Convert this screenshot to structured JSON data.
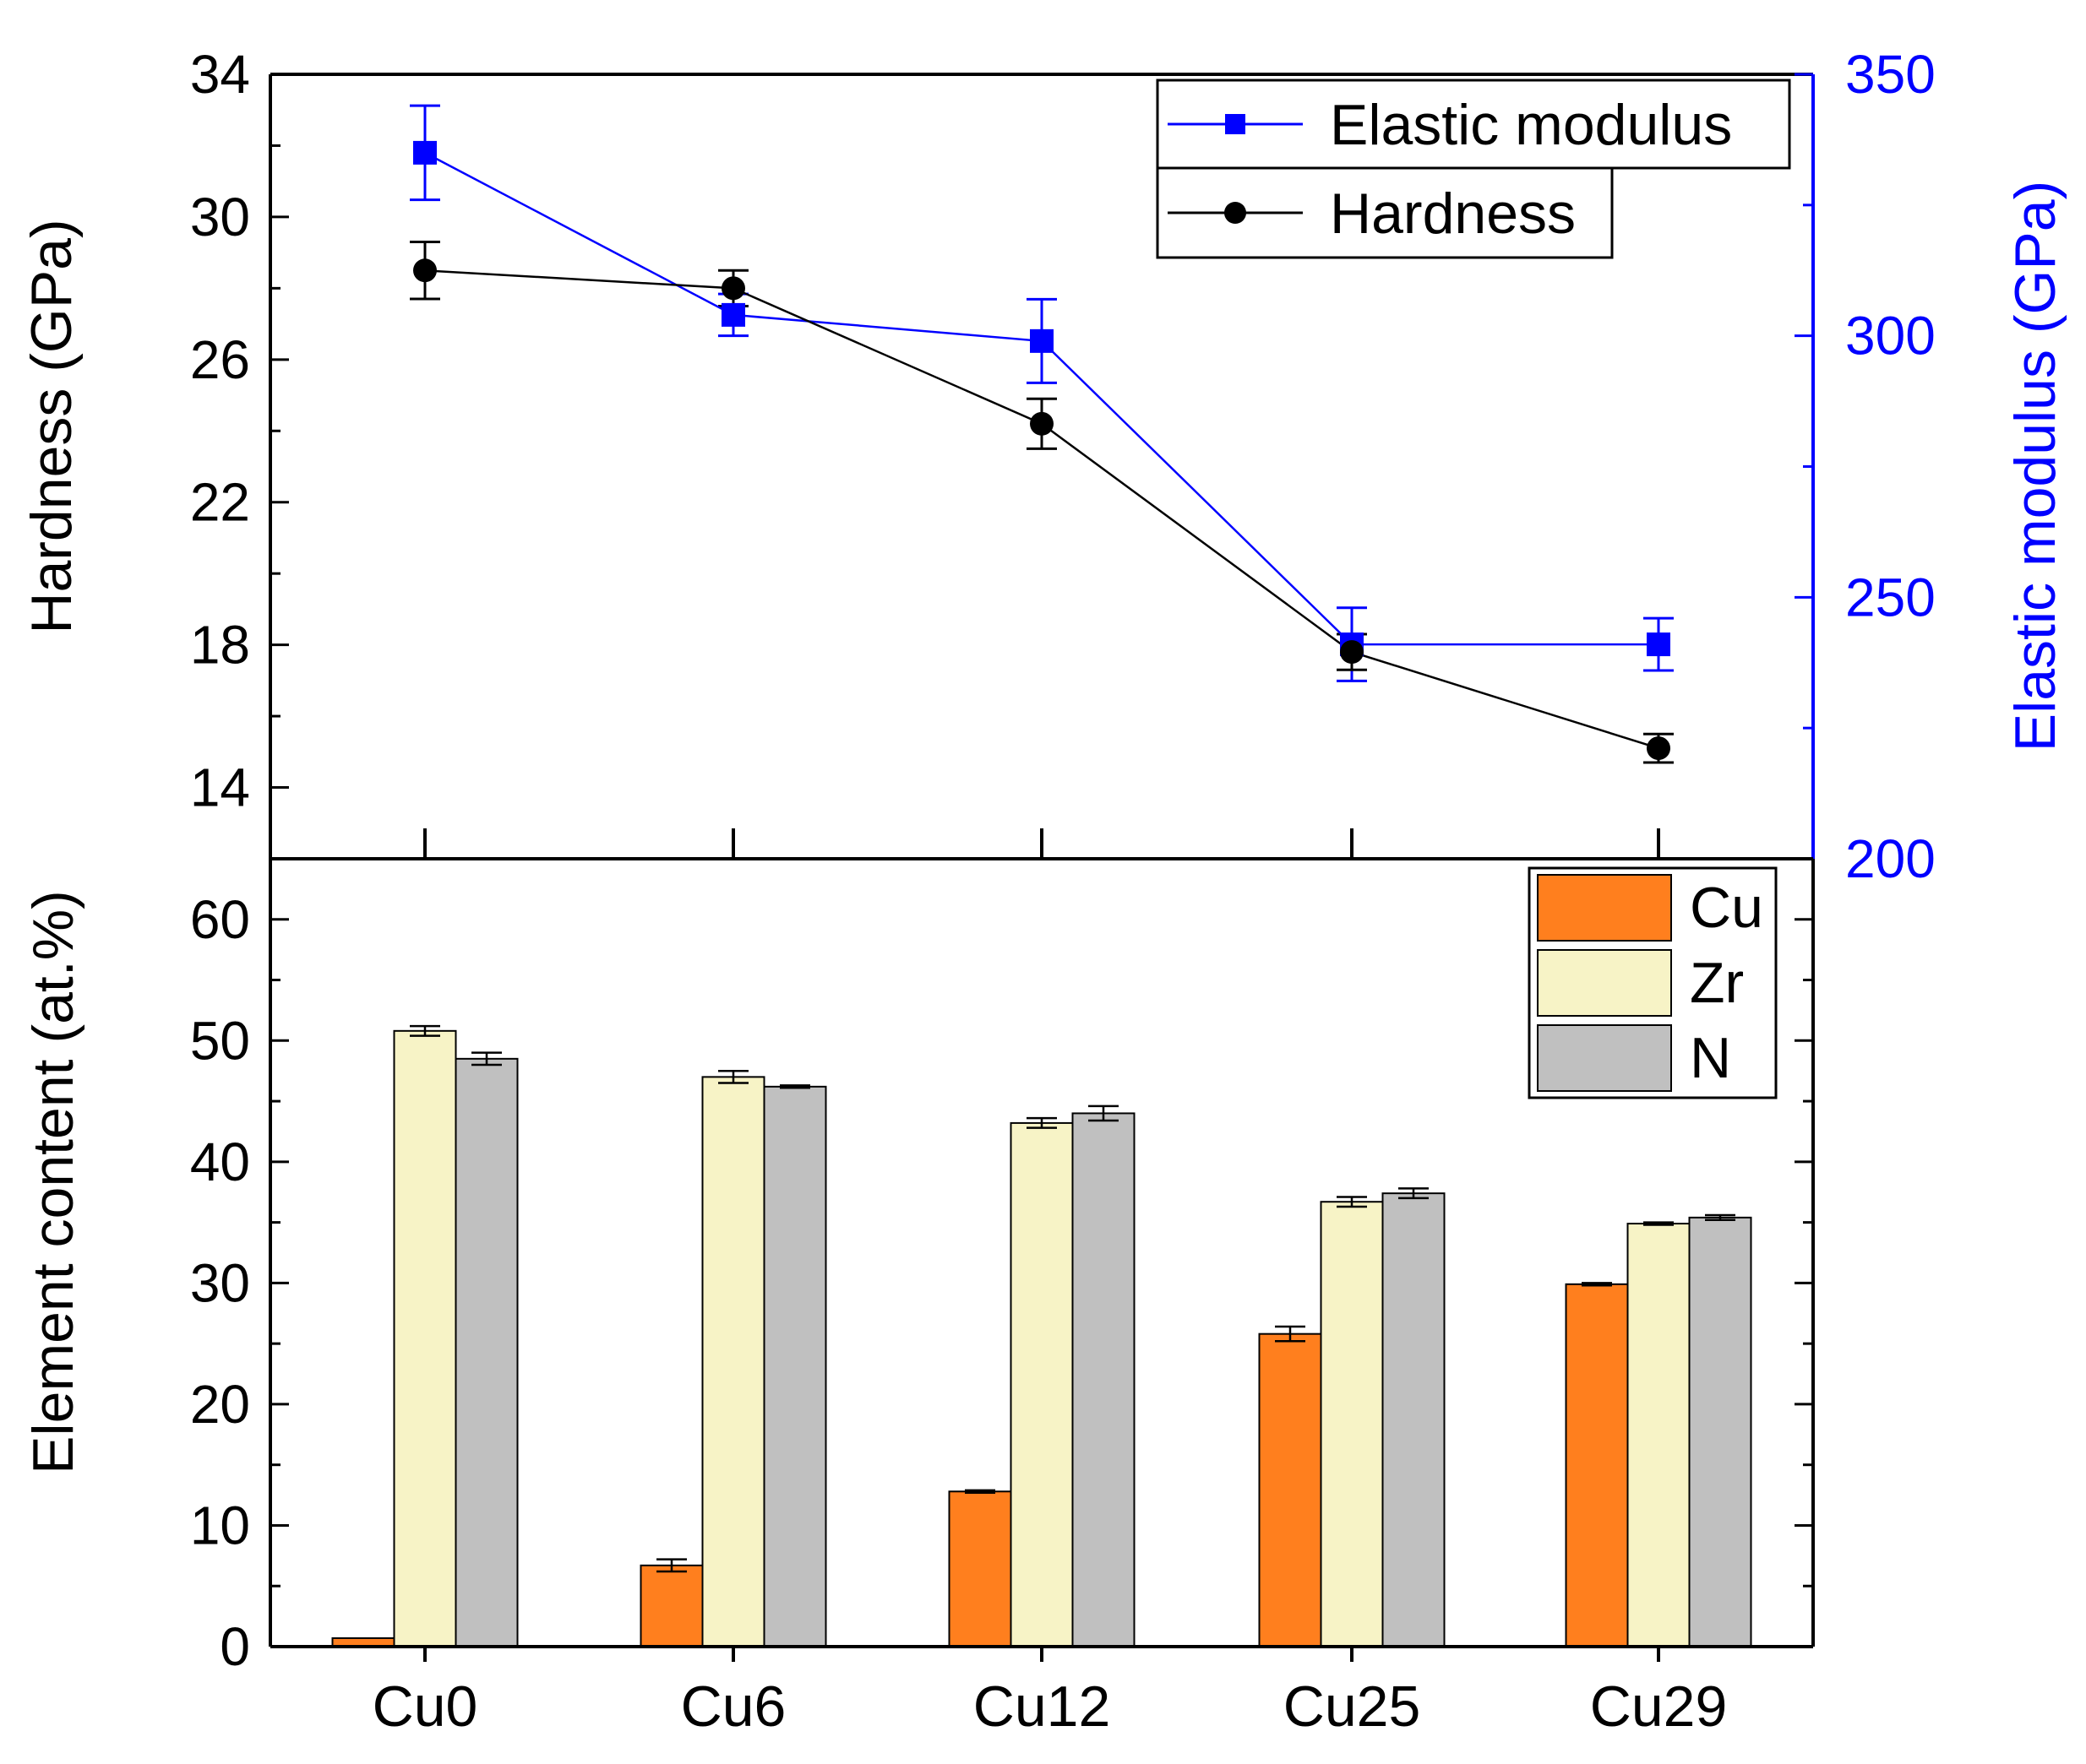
{
  "chart_data": [
    {
      "type": "line",
      "categories": [
        "Cu0",
        "Cu6",
        "Cu12",
        "Cu25",
        "Cu29"
      ],
      "ylabel": "Hardness (GPa)",
      "ylim": [
        12,
        34
      ],
      "yticks": [
        "14",
        "18",
        "22",
        "26",
        "30",
        "34"
      ],
      "y2label": "Elastic modulus (GPa)",
      "y2lim": [
        200,
        350
      ],
      "y2ticks": [
        "200",
        "250",
        "300",
        "350"
      ],
      "legend_position": "top-right",
      "colors": {
        "hardness": "#000000",
        "modulus": "#0000ff"
      },
      "series": [
        {
          "name": "Elastic modulus",
          "axis": "right",
          "marker": "square",
          "color": "#0000ff",
          "values": [
            335,
            304,
            299,
            241,
            241
          ],
          "errors": [
            9,
            4,
            8,
            7,
            5
          ]
        },
        {
          "name": "Hardness",
          "axis": "left",
          "marker": "circle",
          "color": "#000000",
          "values": [
            28.5,
            28.0,
            24.2,
            17.8,
            15.1
          ],
          "errors": [
            0.8,
            0.5,
            0.7,
            0.5,
            0.4
          ]
        }
      ]
    },
    {
      "type": "bar",
      "categories": [
        "Cu0",
        "Cu6",
        "Cu12",
        "Cu25",
        "Cu29"
      ],
      "ylabel": "Element content (at.%)",
      "ylim": [
        0,
        65
      ],
      "yticks": [
        "0",
        "10",
        "20",
        "30",
        "40",
        "50",
        "60"
      ],
      "legend_position": "top-right",
      "series": [
        {
          "name": "Cu",
          "color": "#ff7f1e",
          "values": [
            0.7,
            6.7,
            12.8,
            25.8,
            29.9
          ],
          "errors": [
            0.0,
            0.5,
            0.1,
            0.6,
            0.1
          ]
        },
        {
          "name": "Zr",
          "color": "#f7f3c6",
          "values": [
            50.8,
            47.0,
            43.2,
            36.7,
            34.9
          ],
          "errors": [
            0.4,
            0.5,
            0.4,
            0.4,
            0.1
          ]
        },
        {
          "name": "N",
          "color": "#c0c0c0",
          "values": [
            48.5,
            46.2,
            44.0,
            37.4,
            35.4
          ],
          "errors": [
            0.5,
            0.1,
            0.6,
            0.4,
            0.2
          ]
        }
      ]
    }
  ]
}
